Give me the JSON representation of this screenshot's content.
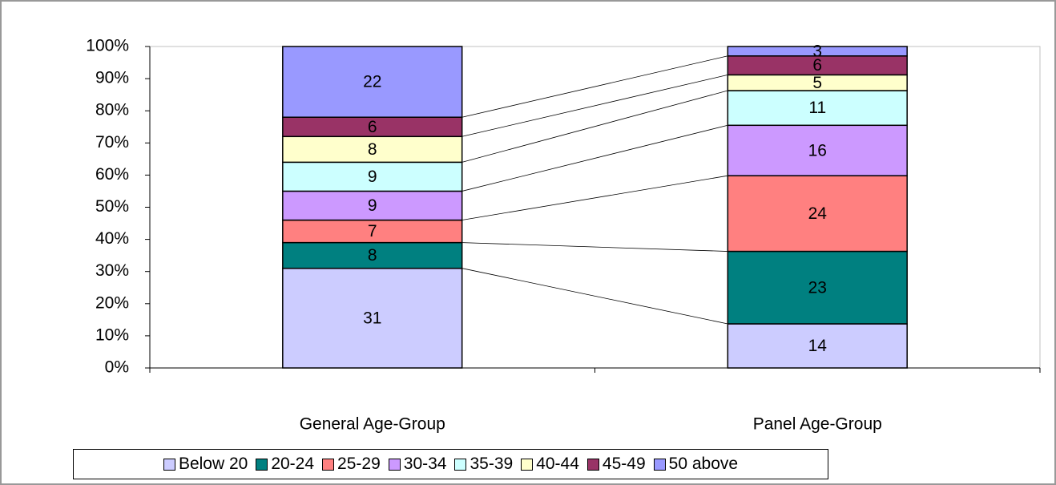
{
  "chart_data": {
    "type": "bar",
    "stacked": "percent",
    "categories": [
      "General Age-Group",
      "Panel Age-Group"
    ],
    "series": [
      {
        "name": "Below 20",
        "color": "#ccccff",
        "values": [
          31,
          14
        ]
      },
      {
        "name": "20-24",
        "color": "#008080",
        "values": [
          8,
          23
        ]
      },
      {
        "name": "25-29",
        "color": "#ff8080",
        "values": [
          7,
          24
        ]
      },
      {
        "name": "30-34",
        "color": "#cc99ff",
        "values": [
          9,
          16
        ]
      },
      {
        "name": "35-39",
        "color": "#ccffff",
        "values": [
          9,
          11
        ]
      },
      {
        "name": "40-44",
        "color": "#ffffcc",
        "values": [
          8,
          5
        ]
      },
      {
        "name": "45-49",
        "color": "#993366",
        "values": [
          6,
          6
        ]
      },
      {
        "name": "50 above",
        "color": "#9999ff",
        "values": [
          22,
          3
        ]
      }
    ],
    "ylim": [
      0,
      100
    ],
    "yticks": [
      {
        "value": 0,
        "label": "0%"
      },
      {
        "value": 10,
        "label": "10%"
      },
      {
        "value": 20,
        "label": "20%"
      },
      {
        "value": 30,
        "label": "30%"
      },
      {
        "value": 40,
        "label": "40%"
      },
      {
        "value": 50,
        "label": "50%"
      },
      {
        "value": 60,
        "label": "60%"
      },
      {
        "value": 70,
        "label": "70%"
      },
      {
        "value": 80,
        "label": "80%"
      },
      {
        "value": 90,
        "label": "90%"
      },
      {
        "value": 100,
        "label": "100%"
      }
    ],
    "legend": "bottom",
    "connectors": true
  }
}
